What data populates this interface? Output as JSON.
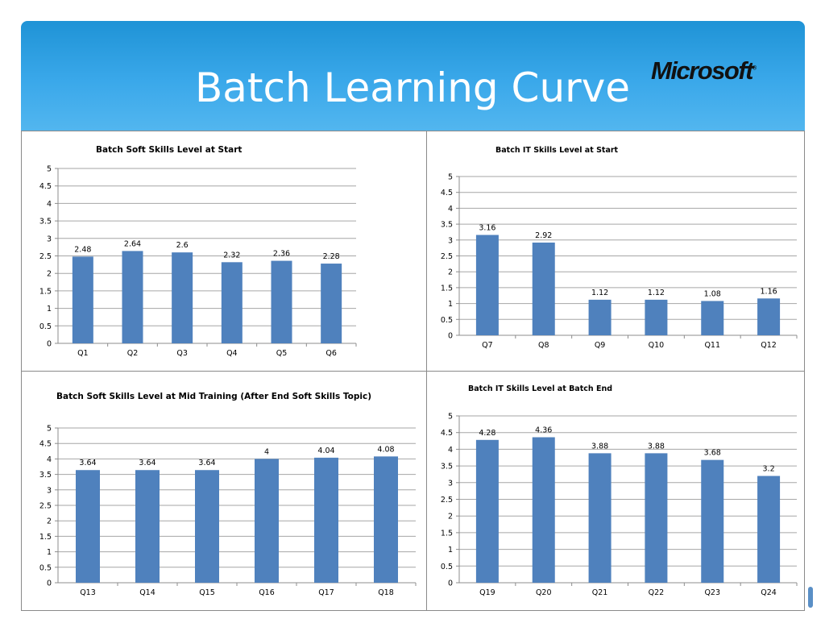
{
  "header": {
    "title": "Batch Learning Curve",
    "logo_text": "Microsoft",
    "background_color": "#2a9fe2",
    "title_color": "#ffffff"
  },
  "chart_data": [
    {
      "type": "bar",
      "title": "Batch Soft Skills Level at Start",
      "categories": [
        "Q1",
        "Q2",
        "Q3",
        "Q4",
        "Q5",
        "Q6"
      ],
      "values": [
        2.48,
        2.64,
        2.6,
        2.32,
        2.36,
        2.28
      ],
      "ylim": [
        0,
        5
      ],
      "yticks": [
        "0",
        "0.5",
        "1",
        "1.5",
        "2",
        "2.5",
        "3",
        "3.5",
        "4",
        "4.5",
        "5"
      ],
      "grid": true,
      "bar_color": "#4f81bd"
    },
    {
      "type": "bar",
      "title": "Batch IT Skills Level at Start",
      "categories": [
        "Q7",
        "Q8",
        "Q9",
        "Q10",
        "Q11",
        "Q12"
      ],
      "values": [
        3.16,
        2.92,
        1.12,
        1.12,
        1.08,
        1.16
      ],
      "ylim": [
        0,
        5
      ],
      "yticks": [
        "0",
        "0.5",
        "1",
        "1.5",
        "2",
        "2.5",
        "3",
        "3.5",
        "4",
        "4.5",
        "5"
      ],
      "grid": true,
      "bar_color": "#4f81bd"
    },
    {
      "type": "bar",
      "title": "Batch Soft Skills Level at Mid Training (After End Soft Skills Topic)",
      "categories": [
        "Q13",
        "Q14",
        "Q15",
        "Q16",
        "Q17",
        "Q18"
      ],
      "values": [
        3.64,
        3.64,
        3.64,
        4,
        4.04,
        4.08
      ],
      "ylim": [
        0,
        5
      ],
      "yticks": [
        "0",
        "0.5",
        "1",
        "1.5",
        "2",
        "2.5",
        "3",
        "3.5",
        "4",
        "4.5",
        "5"
      ],
      "grid": true,
      "bar_color": "#4f81bd"
    },
    {
      "type": "bar",
      "title": "Batch IT Skills Level at Batch End",
      "categories": [
        "Q19",
        "Q20",
        "Q21",
        "Q22",
        "Q23",
        "Q24"
      ],
      "values": [
        4.28,
        4.36,
        3.88,
        3.88,
        3.68,
        3.2
      ],
      "ylim": [
        0,
        5
      ],
      "yticks": [
        "0",
        "0.5",
        "1",
        "1.5",
        "2",
        "2.5",
        "3",
        "3.5",
        "4",
        "4.5",
        "5"
      ],
      "grid": true,
      "bar_color": "#4f81bd"
    }
  ]
}
